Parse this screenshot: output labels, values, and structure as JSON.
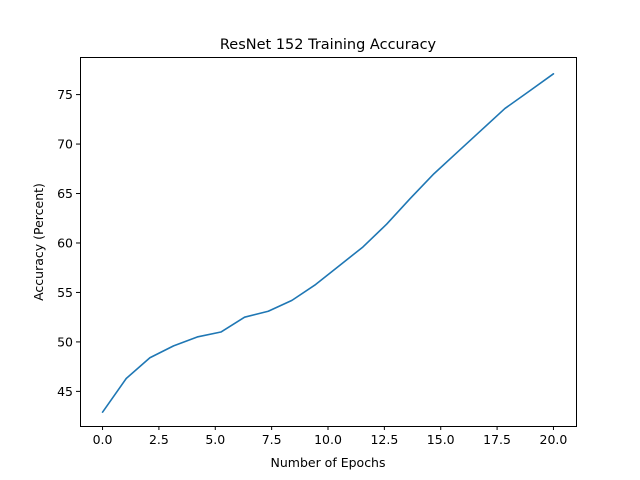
{
  "chart_data": {
    "type": "line",
    "title": "ResNet 152 Training Accuracy",
    "xlabel": "Number of Epochs",
    "ylabel": "Accuracy (Percent)",
    "xlim": [
      -1,
      21
    ],
    "ylim": [
      41.5,
      78.8
    ],
    "x_ticks": [
      0.0,
      2.5,
      5.0,
      7.5,
      10.0,
      12.5,
      15.0,
      17.5,
      20.0
    ],
    "x_tick_labels": [
      "0.0",
      "2.5",
      "5.0",
      "7.5",
      "10.0",
      "12.5",
      "15.0",
      "17.5",
      "20.0"
    ],
    "y_ticks": [
      45,
      50,
      55,
      60,
      65,
      70,
      75
    ],
    "y_tick_labels": [
      "45",
      "50",
      "55",
      "60",
      "65",
      "70",
      "75"
    ],
    "grid": false,
    "series": [
      {
        "color": "#1f77b4",
        "x": [
          0,
          1.05,
          2.1,
          3.15,
          4.2,
          5.25,
          6.3,
          7.35,
          8.4,
          9.45,
          10.5,
          11.55,
          12.6,
          13.65,
          14.7,
          15.75,
          16.8,
          17.85,
          18.9,
          20
        ],
        "y": [
          42.9,
          46.3,
          48.4,
          49.6,
          50.5,
          51.0,
          52.5,
          53.1,
          54.2,
          55.8,
          57.7,
          59.6,
          61.9,
          64.5,
          67.0,
          69.2,
          71.4,
          73.6,
          75.3,
          77.1
        ]
      }
    ]
  }
}
